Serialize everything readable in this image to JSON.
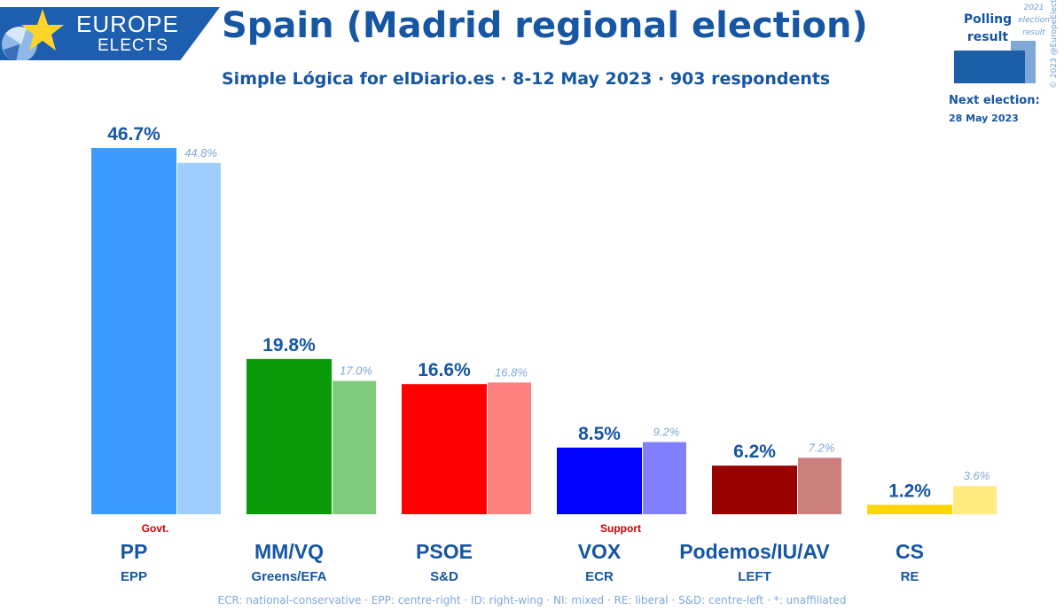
{
  "header": {
    "logo_line1": "EUROPE",
    "logo_line2": "ELECTS",
    "title": "Spain (Madrid regional election)",
    "subtitle": "Simple Lógica for elDiario.es · 8-12 May 2023 · 903 respondents"
  },
  "legend": {
    "polling_result": "Polling result",
    "previous_result": "2021 election result",
    "next_election_label": "Next election:",
    "next_election_date": "28 May 2023",
    "copyright": "© 2023 @EuropeElects"
  },
  "footer": {
    "note": "ECR: national-conservative · EPP: centre-right · ID: right-wing · NI: mixed · RE: liberal · S&D: centre-left · *: unaffiliated"
  },
  "chart_data": {
    "type": "bar",
    "categories": [
      "PP",
      "MM/VQ",
      "PSOE",
      "VOX",
      "Podemos/IU/AV",
      "CS"
    ],
    "groups": [
      "EPP",
      "Greens/EFA",
      "S&D",
      "ECR",
      "LEFT",
      "RE"
    ],
    "status": [
      "Govt.",
      "",
      "",
      "Support",
      "",
      ""
    ],
    "colors": [
      "#3d9bff",
      "#0a9a0a",
      "#ff0000",
      "#0000ff",
      "#990000",
      "#ffd700"
    ],
    "prev_colors": [
      "#9fcdff",
      "#7fcc7f",
      "#ff8080",
      "#8080ff",
      "#cc7f7f",
      "#ffeb80"
    ],
    "series": [
      {
        "name": "Polling result",
        "values": [
          46.7,
          19.8,
          16.6,
          8.5,
          6.2,
          1.2
        ],
        "labels": [
          "46.7%",
          "19.8%",
          "16.6%",
          "8.5%",
          "6.2%",
          "1.2%"
        ]
      },
      {
        "name": "2021 election result",
        "values": [
          44.8,
          17.0,
          16.8,
          9.2,
          7.2,
          3.6
        ],
        "labels": [
          "44.8%",
          "17.0%",
          "16.8%",
          "9.2%",
          "7.2%",
          "3.6%"
        ]
      }
    ],
    "ylim": [
      0,
      46.7
    ]
  }
}
